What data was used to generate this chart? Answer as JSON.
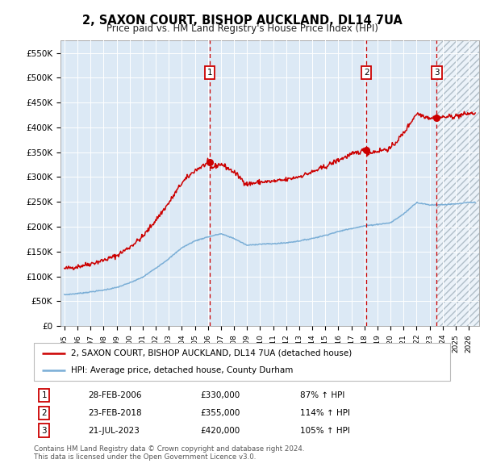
{
  "title": "2, SAXON COURT, BISHOP AUCKLAND, DL14 7UA",
  "subtitle": "Price paid vs. HM Land Registry's House Price Index (HPI)",
  "ylim": [
    0,
    575000
  ],
  "xlim_start": 1994.7,
  "xlim_end": 2026.8,
  "sale_dates": [
    2006.154,
    2018.146,
    2023.548
  ],
  "sale_prices": [
    330000,
    355000,
    420000
  ],
  "sale_labels": [
    "1",
    "2",
    "3"
  ],
  "sale_date_strings": [
    "28-FEB-2006",
    "23-FEB-2018",
    "21-JUL-2023"
  ],
  "sale_price_strings": [
    "£330,000",
    "£355,000",
    "£420,000"
  ],
  "sale_pct_strings": [
    "87% ↑ HPI",
    "114% ↑ HPI",
    "105% ↑ HPI"
  ],
  "legend_line1": "2, SAXON COURT, BISHOP AUCKLAND, DL14 7UA (detached house)",
  "legend_line2": "HPI: Average price, detached house, County Durham",
  "footnote1": "Contains HM Land Registry data © Crown copyright and database right 2024.",
  "footnote2": "This data is licensed under the Open Government Licence v3.0.",
  "red_color": "#cc0000",
  "blue_color": "#7aaed6",
  "background_color": "#dce9f5",
  "grid_color": "#ffffff",
  "hpi_keypoints_t": [
    1995,
    1996,
    1997,
    1998,
    1999,
    2000,
    2001,
    2002,
    2003,
    2004,
    2005,
    2006,
    2007,
    2008,
    2009,
    2010,
    2011,
    2012,
    2013,
    2014,
    2015,
    2016,
    2017,
    2018,
    2019,
    2020,
    2021,
    2022,
    2023,
    2024,
    2025,
    2026
  ],
  "hpi_keypoints_v": [
    1.0,
    1.04,
    1.09,
    1.15,
    1.23,
    1.38,
    1.56,
    1.85,
    2.15,
    2.5,
    2.72,
    2.85,
    2.95,
    2.8,
    2.58,
    2.62,
    2.63,
    2.66,
    2.72,
    2.8,
    2.9,
    3.02,
    3.12,
    3.2,
    3.25,
    3.3,
    3.58,
    3.95,
    3.87,
    3.88,
    3.9,
    3.95
  ],
  "blue_base": 63000,
  "red_base_pre_sale1": 116000,
  "red_base_post_sale1": 111000,
  "red_base_post_sale2": 131000
}
